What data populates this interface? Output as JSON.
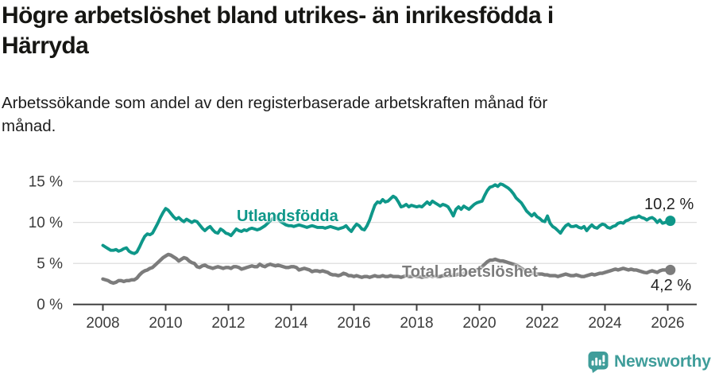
{
  "header": {
    "title": "Högre arbetslöshet bland utrikes- än inrikesfödda i\nHärryda",
    "subtitle": "Arbetssökande som andel av den registerbaserade arbetskraften månad för\nmånad."
  },
  "chart_data": {
    "type": "line",
    "title": "Högre arbetslöshet bland utrikes- än inrikesfödda i Härryda",
    "subtitle": "Arbetssökande som andel av den registerbaserade arbetskraften månad för månad.",
    "x_start": 2008,
    "points_per_year": 12,
    "x_ticks": [
      2008,
      2010,
      2012,
      2014,
      2016,
      2018,
      2020,
      2022,
      2024,
      2026
    ],
    "y_ticks": [
      0,
      5,
      10,
      15
    ],
    "y_suffix": " %",
    "ylim": [
      0,
      15.5
    ],
    "grid": true,
    "grid_color": "#d9d9d9",
    "axis_color": "#404040",
    "legend_position": "inline-labels",
    "xlabel": "",
    "ylabel": "",
    "series": [
      {
        "name": "Utlandsfödda",
        "color": "#0e9789",
        "end_label": "10,2 %",
        "end_value": 10.2,
        "values": [
          7.2,
          7.0,
          6.8,
          6.6,
          6.6,
          6.7,
          6.5,
          6.6,
          6.8,
          6.9,
          6.5,
          6.3,
          6.2,
          6.4,
          7.0,
          7.7,
          8.3,
          8.6,
          8.5,
          8.7,
          9.3,
          9.9,
          10.6,
          11.2,
          11.7,
          11.5,
          11.1,
          10.7,
          10.4,
          10.6,
          10.3,
          10.1,
          10.4,
          10.2,
          10.0,
          10.2,
          10.1,
          9.7,
          9.3,
          9.0,
          9.3,
          9.5,
          9.1,
          8.8,
          8.7,
          9.2,
          9.0,
          8.7,
          8.6,
          8.4,
          8.8,
          9.2,
          9.0,
          8.9,
          9.1,
          9.0,
          9.2,
          9.3,
          9.2,
          9.1,
          9.2,
          9.4,
          9.6,
          9.9,
          10.2,
          10.5,
          10.8,
          10.4,
          10.1,
          9.9,
          9.7,
          9.6,
          9.6,
          9.5,
          9.6,
          9.7,
          9.6,
          9.5,
          9.4,
          9.5,
          9.6,
          9.5,
          9.4,
          9.4,
          9.4,
          9.3,
          9.4,
          9.5,
          9.4,
          9.3,
          9.2,
          9.3,
          9.4,
          9.6,
          9.2,
          8.9,
          9.4,
          9.8,
          9.6,
          9.2,
          9.1,
          9.6,
          10.3,
          11.2,
          12.1,
          12.5,
          12.4,
          12.8,
          12.5,
          12.6,
          12.9,
          13.2,
          13.0,
          12.5,
          11.9,
          12.0,
          12.2,
          11.9,
          12.1,
          12.0,
          11.9,
          12.0,
          11.9,
          12.2,
          12.5,
          12.2,
          12.6,
          12.4,
          12.2,
          12.0,
          12.2,
          12.1,
          11.9,
          11.4,
          10.8,
          11.6,
          11.9,
          11.6,
          12.0,
          11.8,
          11.6,
          11.9,
          12.2,
          12.4,
          12.5,
          12.6,
          13.3,
          13.9,
          14.3,
          14.4,
          14.6,
          14.4,
          14.7,
          14.6,
          14.4,
          14.2,
          13.9,
          13.5,
          13.0,
          12.7,
          12.4,
          11.9,
          11.4,
          11.1,
          10.8,
          11.1,
          10.7,
          10.5,
          10.2,
          10.1,
          10.8,
          9.9,
          9.5,
          9.3,
          9.0,
          8.7,
          9.2,
          9.6,
          9.8,
          9.5,
          9.5,
          9.6,
          9.4,
          9.3,
          9.5,
          9.0,
          9.4,
          9.7,
          9.4,
          9.3,
          9.6,
          9.8,
          9.7,
          9.4,
          9.3,
          9.5,
          9.6,
          9.9,
          10.0,
          9.9,
          10.2,
          10.3,
          10.5,
          10.6,
          10.6,
          10.8,
          10.6,
          10.5,
          10.3,
          10.5,
          10.6,
          10.4,
          10.0,
          10.3,
          9.9,
          10.0,
          10.1,
          10.2
        ]
      },
      {
        "name": "Total arbetslöshet",
        "color": "#7c7c7c",
        "end_label": "4,2 %",
        "end_value": 4.2,
        "values": [
          3.1,
          3.0,
          2.9,
          2.7,
          2.6,
          2.7,
          2.9,
          2.9,
          2.8,
          2.9,
          2.9,
          3.0,
          3.0,
          3.2,
          3.6,
          3.9,
          4.1,
          4.2,
          4.4,
          4.5,
          4.8,
          5.1,
          5.4,
          5.7,
          5.9,
          6.1,
          6.0,
          5.8,
          5.6,
          5.3,
          5.5,
          5.7,
          5.6,
          5.3,
          5.1,
          5.0,
          4.6,
          4.5,
          4.7,
          4.8,
          4.6,
          4.5,
          4.4,
          4.5,
          4.6,
          4.5,
          4.4,
          4.5,
          4.5,
          4.4,
          4.6,
          4.6,
          4.5,
          4.3,
          4.4,
          4.5,
          4.6,
          4.7,
          4.6,
          4.6,
          4.9,
          4.7,
          4.6,
          4.8,
          4.9,
          4.8,
          4.7,
          4.8,
          4.7,
          4.6,
          4.5,
          4.5,
          4.6,
          4.6,
          4.5,
          4.2,
          4.3,
          4.4,
          4.3,
          4.2,
          4.0,
          4.1,
          4.1,
          4.0,
          4.1,
          4.0,
          3.9,
          3.7,
          3.6,
          3.6,
          3.5,
          3.6,
          3.8,
          3.7,
          3.5,
          3.5,
          3.4,
          3.5,
          3.4,
          3.3,
          3.4,
          3.4,
          3.3,
          3.4,
          3.5,
          3.4,
          3.4,
          3.5,
          3.4,
          3.4,
          3.5,
          3.4,
          3.4,
          3.4,
          3.3,
          3.4,
          3.5,
          3.4,
          3.4,
          3.5,
          3.4,
          3.4,
          3.3,
          3.4,
          3.4,
          3.5,
          3.4,
          3.5,
          3.4,
          3.4,
          3.5,
          3.5,
          3.5,
          3.5,
          3.6,
          3.6,
          3.7,
          3.7,
          3.8,
          3.8,
          3.9,
          4.0,
          4.1,
          4.2,
          4.4,
          4.6,
          4.9,
          5.2,
          5.4,
          5.4,
          5.5,
          5.4,
          5.3,
          5.3,
          5.2,
          5.1,
          5.0,
          4.9,
          4.8,
          4.6,
          4.4,
          4.2,
          4.1,
          3.9,
          3.8,
          3.8,
          3.7,
          3.7,
          3.7,
          3.6,
          3.6,
          3.5,
          3.5,
          3.5,
          3.4,
          3.5,
          3.6,
          3.7,
          3.6,
          3.5,
          3.5,
          3.6,
          3.5,
          3.4,
          3.4,
          3.5,
          3.6,
          3.7,
          3.6,
          3.7,
          3.8,
          3.8,
          3.9,
          4.0,
          4.1,
          4.2,
          4.3,
          4.2,
          4.3,
          4.4,
          4.3,
          4.2,
          4.3,
          4.2,
          4.2,
          4.1,
          4.0,
          3.9,
          3.85,
          4.0,
          4.1,
          4.0,
          3.9,
          4.1,
          4.2,
          4.2,
          4.2,
          4.2
        ]
      }
    ]
  },
  "footer": {
    "brand": "Newsworthy"
  }
}
